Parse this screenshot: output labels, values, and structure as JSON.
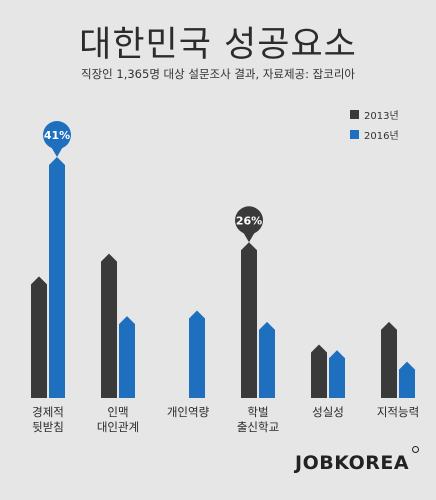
{
  "header": {
    "title": "대한민국 성공요소",
    "subtitle": "직장인 1,365명 대상 설문조사 결과, 자료제공: 잡코리아"
  },
  "colors": {
    "s2013": "#3a3a3a",
    "s2016": "#1f6fbf"
  },
  "chart_data": {
    "type": "bar",
    "title": "대한민국 성공요소",
    "legend_position": "top-right",
    "grid": false,
    "categories": [
      [
        "경제적",
        "뒷받침"
      ],
      [
        "인맥",
        "대인관계"
      ],
      [
        "개인역량"
      ],
      [
        "학벌",
        "출신학교"
      ],
      [
        "성실성"
      ],
      [
        "지적능력"
      ]
    ],
    "series": [
      {
        "name": "2013년",
        "values": [
          20,
          24,
          null,
          26,
          8,
          12
        ]
      },
      {
        "name": "2016년",
        "values": [
          41,
          13,
          14,
          12,
          7,
          5
        ]
      }
    ],
    "data_labels": [
      {
        "series": 1,
        "index": 0,
        "text": "41%"
      },
      {
        "series": 0,
        "index": 3,
        "text": "26%"
      }
    ],
    "ylim": [
      0,
      44
    ]
  },
  "brand": "JOBKOREA"
}
